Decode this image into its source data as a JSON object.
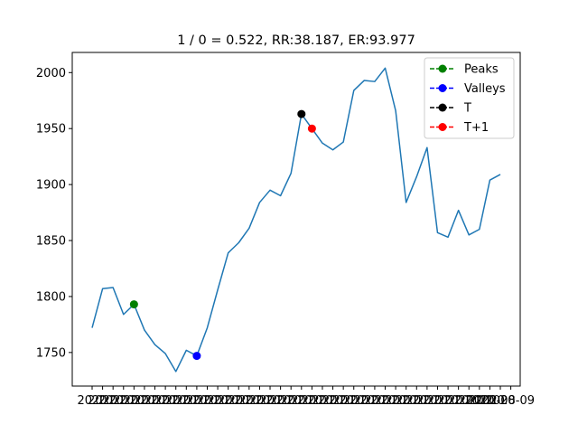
{
  "chart_data": {
    "type": "line",
    "title": "1 / 0 = 0.522, RR:38.187, ER:93.977",
    "xlabel": "",
    "ylabel": "",
    "ylim": [
      1720,
      2018
    ],
    "yticks": [
      1750,
      1800,
      1850,
      1900,
      1950,
      2000
    ],
    "x_tick_labels": [
      "2020",
      "2020",
      "2020",
      "2020",
      "2020",
      "2020",
      "2020",
      "2020",
      "2020",
      "2020",
      "2020",
      "2020",
      "2020",
      "2020",
      "2020",
      "2020",
      "2020",
      "2020",
      "2020",
      "2020",
      "2020",
      "2020",
      "2020",
      "2020",
      "2020",
      "2020",
      "2020",
      "2020",
      "2020",
      "2020",
      "2020",
      "2020",
      "2020",
      "2020",
      "2020",
      "2020",
      "2020",
      "2020",
      "2020",
      "2020",
      "2020-08-09"
    ],
    "series": [
      {
        "name": "",
        "color": "#1f77b4",
        "values": [
          1772,
          1807,
          1808,
          1784,
          1793,
          1770,
          1757,
          1749,
          1733,
          1752,
          1747,
          1772,
          1806,
          1839,
          1848,
          1861,
          1884,
          1895,
          1890,
          1910,
          1963,
          1950,
          1937,
          1931,
          1938,
          1984,
          1993,
          1992,
          2004,
          1966,
          1884,
          1907,
          1933,
          1857,
          1853,
          1877,
          1855,
          1860,
          1904,
          1909
        ]
      }
    ],
    "markers": [
      {
        "name": "Peaks",
        "color": "#008000",
        "index": 4,
        "value": 1793
      },
      {
        "name": "Valleys",
        "color": "#0000ff",
        "index": 10,
        "value": 1747
      },
      {
        "name": "T",
        "color": "#000000",
        "index": 20,
        "value": 1963
      },
      {
        "name": "T+1",
        "color": "#ff0000",
        "index": 21,
        "value": 1950
      }
    ],
    "legend": {
      "position": "top-right",
      "entries": [
        {
          "label": "Peaks",
          "color": "#008000"
        },
        {
          "label": "Valleys",
          "color": "#0000ff"
        },
        {
          "label": "T",
          "color": "#000000"
        },
        {
          "label": "T+1",
          "color": "#ff0000"
        }
      ]
    },
    "grid": false
  }
}
